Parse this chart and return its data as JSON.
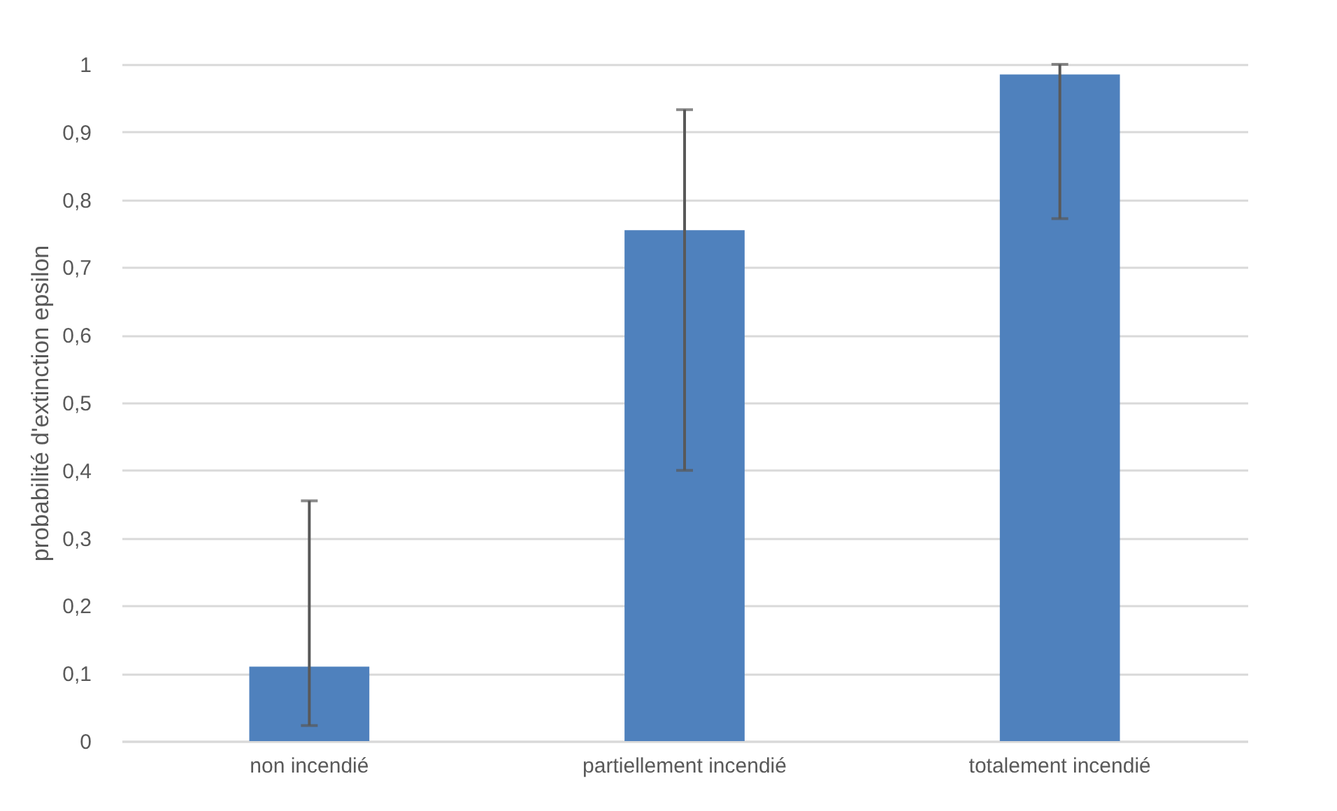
{
  "chart_data": {
    "type": "bar",
    "ylabel": "probabilité d'extinction epsilon",
    "categories": [
      "non incendié",
      "partiellement incendié",
      "totalement incendié"
    ],
    "values": [
      0.11,
      0.755,
      0.985
    ],
    "color": "#4f81bd",
    "errors": [
      [
        0.023,
        0.355
      ],
      [
        0.4,
        0.933
      ],
      [
        0.772,
        1.0
      ]
    ],
    "ylim": [
      0,
      1
    ],
    "yticks": [
      0,
      {
        "value": 0.1,
        "label": "0,1"
      },
      {
        "value": 0.2,
        "label": "0,2"
      },
      {
        "value": 0.3,
        "label": "0,3"
      },
      {
        "value": 0.4,
        "label": "0,4"
      },
      {
        "value": 0.5,
        "label": "0,5"
      },
      {
        "value": 0.6,
        "label": "0,6"
      },
      {
        "value": 0.7,
        "label": "0,7"
      },
      {
        "value": 0.8,
        "label": "0,8"
      },
      {
        "value": 0.9,
        "label": "0,9"
      },
      1
    ],
    "grid": "y"
  }
}
